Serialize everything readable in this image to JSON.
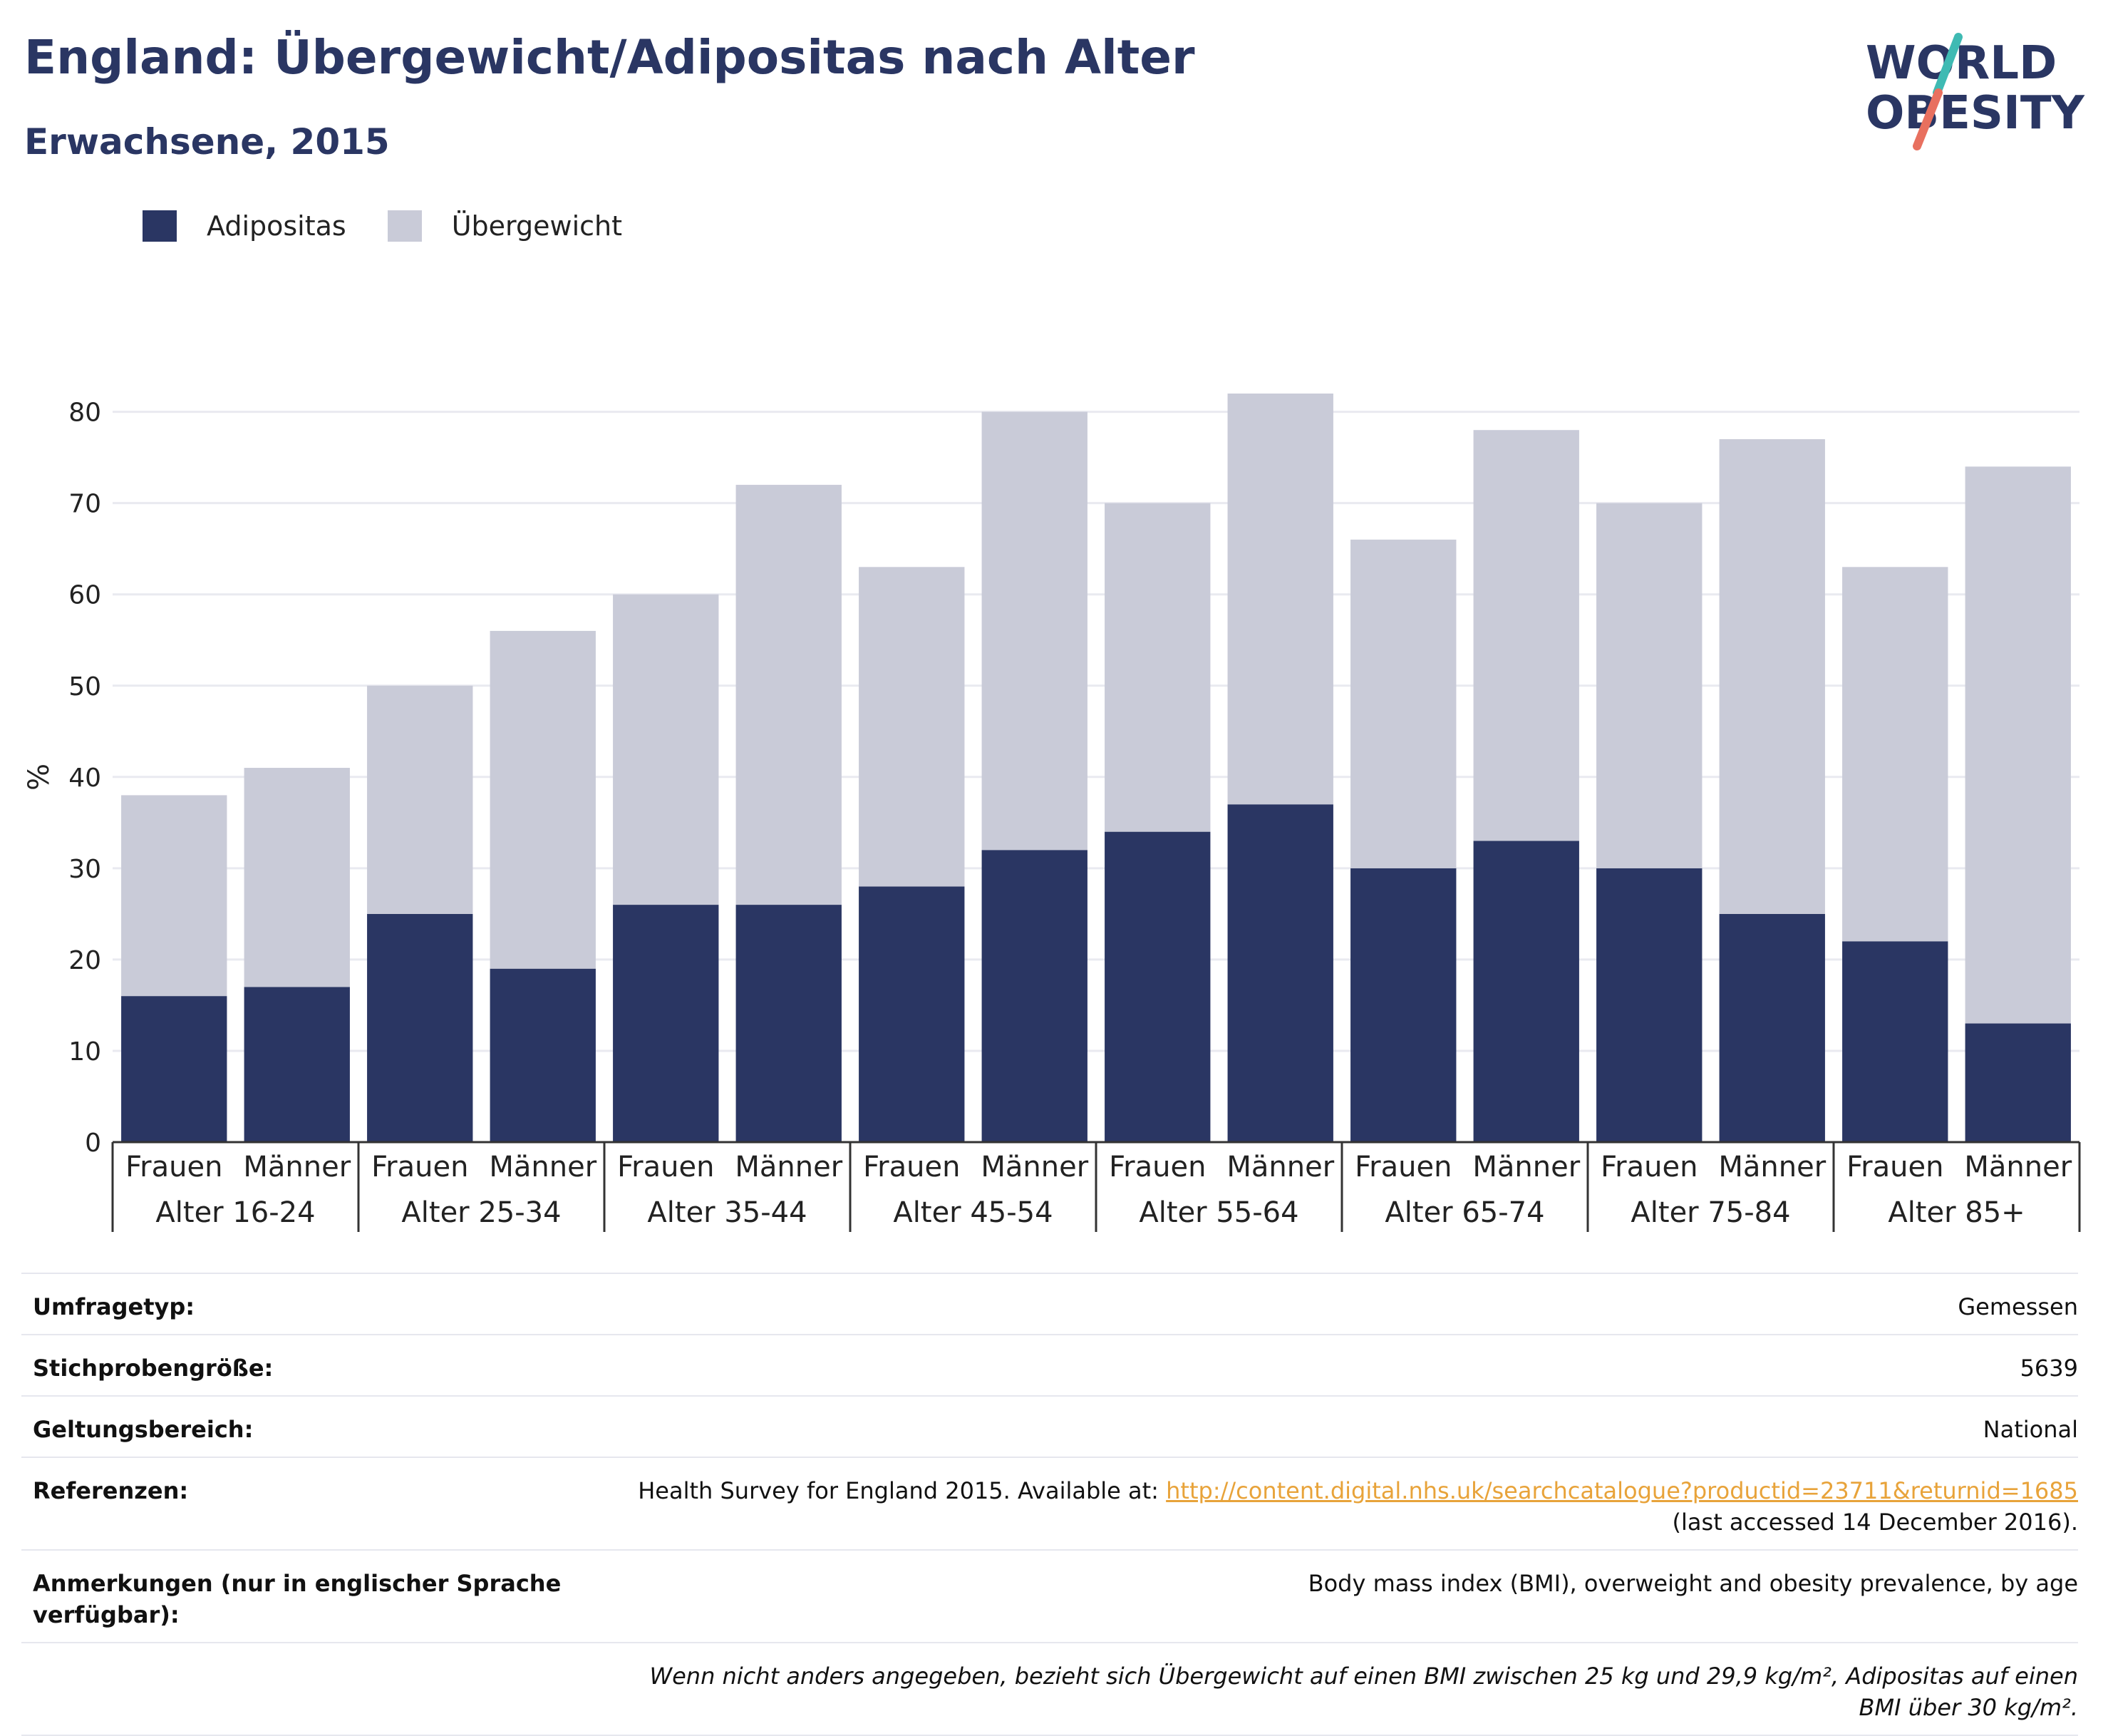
{
  "header": {
    "title": "England: Übergewicht/Adipositas nach Alter",
    "subtitle": "Erwachsene, 2015"
  },
  "logo": {
    "line1": "WORLD",
    "line2": "OBESITY"
  },
  "legend": {
    "obesity_label": "Adipositas",
    "overweight_label": "Übergewicht"
  },
  "colors": {
    "obesity": "#2a3663",
    "overweight": "#c9cbd8",
    "accent_teal": "#3fbab3",
    "accent_coral": "#e8705f"
  },
  "chart_data": {
    "type": "bar",
    "stacked": true,
    "ylabel": "%",
    "ylim": [
      0,
      82
    ],
    "yticks": [
      0,
      10,
      20,
      30,
      40,
      50,
      60,
      70,
      80
    ],
    "grid": true,
    "groups": [
      "Alter 16-24",
      "Alter 25-34",
      "Alter 35-44",
      "Alter 45-54",
      "Alter 55-64",
      "Alter 65-74",
      "Alter 75-84",
      "Alter 85+"
    ],
    "subcategories": [
      "Frauen",
      "Männer"
    ],
    "series": [
      {
        "name": "Adipositas",
        "values": [
          16,
          17,
          25,
          19,
          26,
          26,
          28,
          32,
          34,
          37,
          30,
          33,
          30,
          25,
          22,
          13
        ]
      },
      {
        "name": "Übergewicht",
        "values": [
          22,
          24,
          25,
          37,
          34,
          46,
          35,
          48,
          36,
          45,
          36,
          45,
          40,
          52,
          41,
          61
        ]
      }
    ]
  },
  "details": [
    {
      "label": "Umfragetyp:",
      "value": "Gemessen"
    },
    {
      "label": "Stichprobengröße:",
      "value": "5639"
    },
    {
      "label": "Geltungsbereich:",
      "value": "National"
    },
    {
      "label": "Referenzen:",
      "value_pre": "Health Survey for England 2015. Available at: ",
      "link": "http://content.digital.nhs.uk/searchcatalogue?productid=23711&returnid=1685",
      "value_post": " (last accessed 14 December 2016)."
    },
    {
      "label": "Anmerkungen (nur in englischer Sprache verfügbar):",
      "value": "Body mass index (BMI), overweight and obesity prevalence, by age"
    }
  ],
  "footnote": "Wenn nicht anders angegeben, bezieht sich Übergewicht auf einen BMI zwischen 25 kg und 29,9 kg/m², Adipositas auf einen BMI über 30 kg/m²."
}
